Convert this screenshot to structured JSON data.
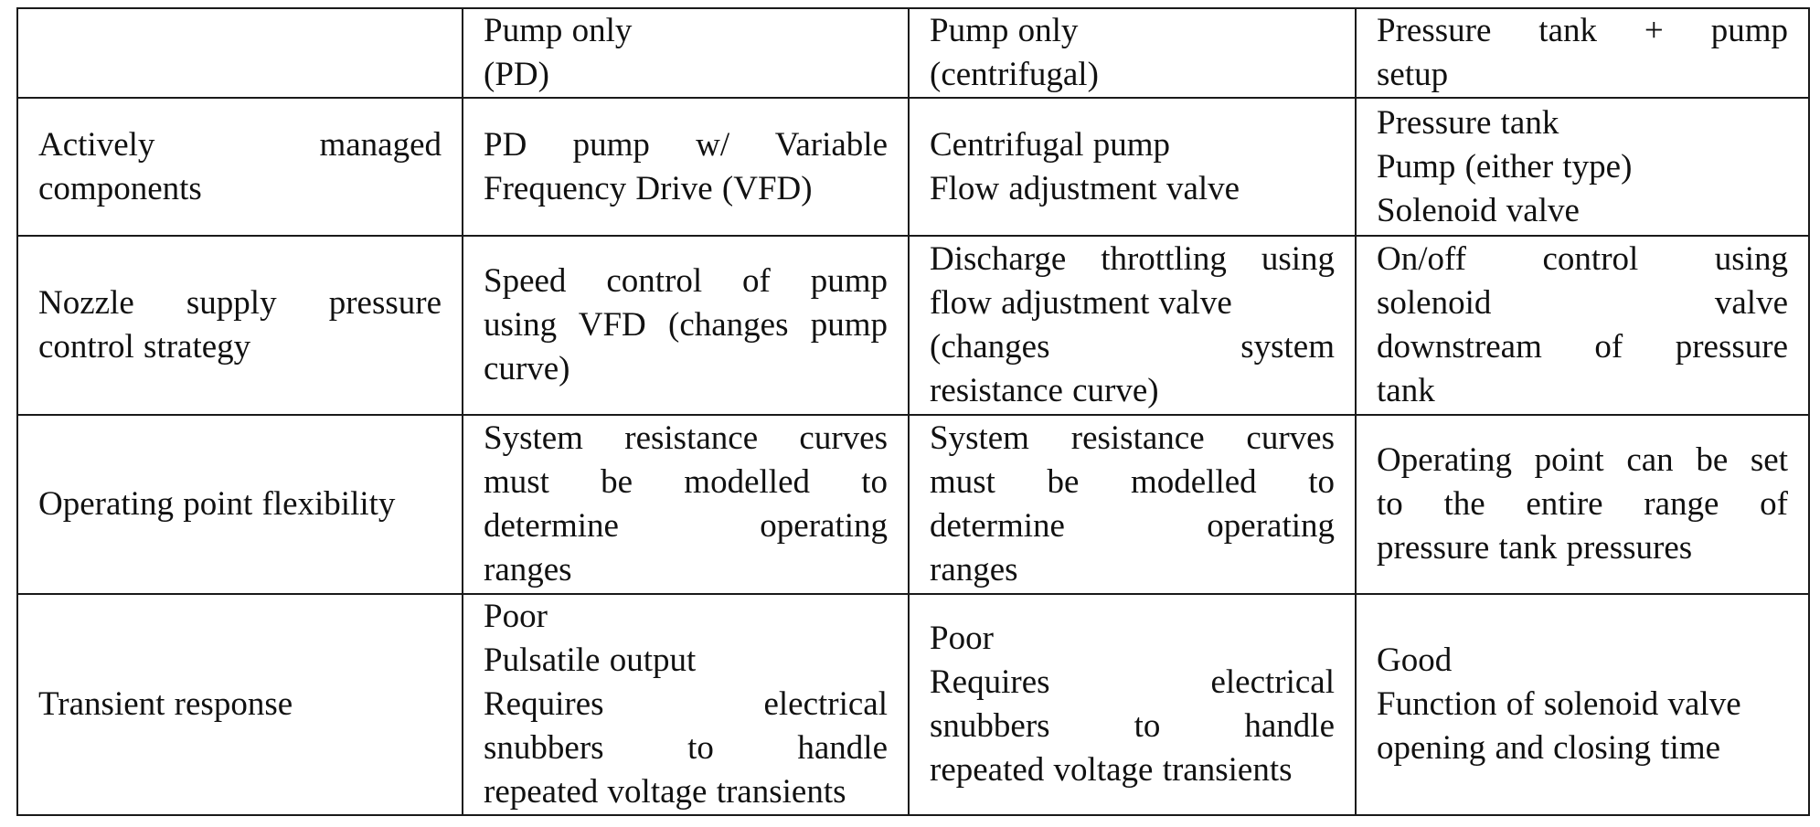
{
  "table": {
    "header": {
      "col1": [
        "Pump only",
        "(PD)"
      ],
      "col2": [
        "Pump only",
        "(centrifugal)"
      ],
      "col3": [
        "Pressure tank + pump",
        "setup"
      ]
    },
    "rows": [
      {
        "label": [
          "Actively managed",
          "components"
        ],
        "pd": [
          "PD pump w/ Variable",
          "Frequency Drive (VFD)"
        ],
        "centrifugal": [
          "Centrifugal pump",
          "Flow adjustment valve"
        ],
        "tank": [
          "Pressure tank",
          "Pump (either type)",
          "Solenoid valve"
        ]
      },
      {
        "label": [
          "Nozzle supply pressure",
          "control strategy"
        ],
        "pd": [
          "Speed control of pump",
          "using VFD (changes pump",
          "curve)"
        ],
        "centrifugal": [
          "Discharge throttling using",
          "flow adjustment valve",
          "(changes system",
          "resistance curve)"
        ],
        "tank": [
          "On/off control using",
          "solenoid valve",
          "downstream of pressure",
          "tank"
        ]
      },
      {
        "label": [
          "Operating point flexibility"
        ],
        "pd": [
          "System resistance curves",
          "must be modelled to",
          "determine operating",
          "ranges"
        ],
        "centrifugal": [
          "System resistance curves",
          "must be modelled to",
          "determine operating",
          "ranges"
        ],
        "tank": [
          "Operating point can be set",
          "to the entire range of",
          "pressure tank pressures"
        ]
      },
      {
        "label": [
          "Transient response"
        ],
        "pd": [
          "Poor",
          "Pulsatile output",
          "Requires electrical",
          "snubbers to handle",
          "repeated voltage transients"
        ],
        "centrifugal": [
          "Poor",
          "Requires electrical",
          "snubbers to handle",
          "repeated voltage transients"
        ],
        "tank": [
          "Good",
          "Function of solenoid valve",
          "opening and closing time"
        ]
      }
    ]
  }
}
